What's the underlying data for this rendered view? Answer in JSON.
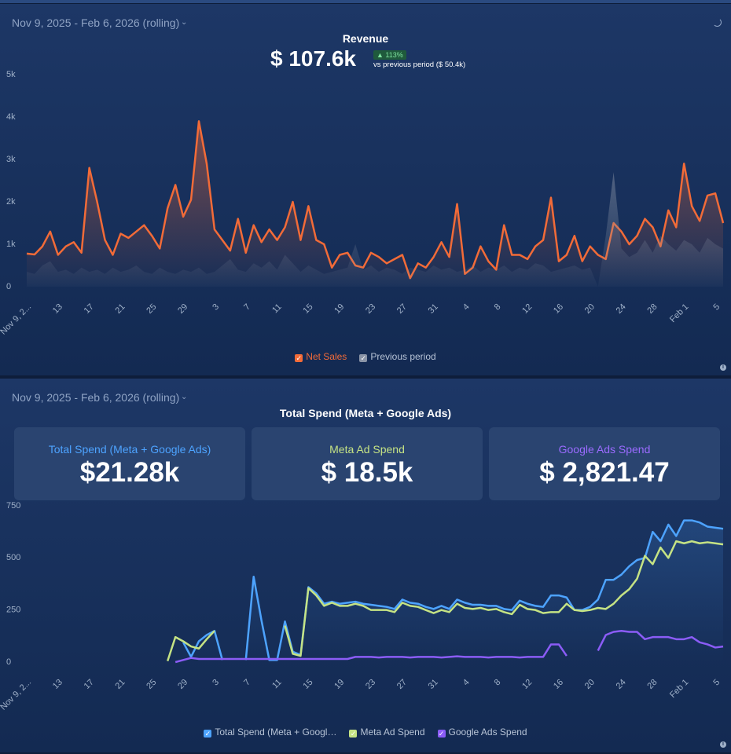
{
  "chart_data": [
    {
      "type": "line",
      "date_range": "Nov 9, 2025 - Feb 6, 2026 (rolling)",
      "title": "Revenue",
      "kpi_value": "$ 107.6k",
      "change": "▲ 113%",
      "comparison": "vs previous period ($ 50.4k)",
      "categories": [
        "Nov 9, 2...",
        null,
        null,
        null,
        "13",
        null,
        null,
        null,
        "17",
        null,
        null,
        null,
        "21",
        null,
        null,
        null,
        "25",
        null,
        null,
        null,
        "29",
        null,
        null,
        null,
        "3",
        null,
        null,
        null,
        "7",
        null,
        null,
        null,
        "11",
        null,
        null,
        null,
        "15",
        null,
        null,
        null,
        "19",
        null,
        null,
        null,
        "23",
        null,
        null,
        null,
        "27",
        null,
        null,
        null,
        "31",
        null,
        null,
        null,
        "4",
        null,
        null,
        null,
        "8",
        null,
        null,
        null,
        "12",
        null,
        null,
        null,
        "16",
        null,
        null,
        null,
        "20",
        null,
        null,
        null,
        "24",
        null,
        null,
        null,
        "28",
        null,
        null,
        null,
        "Feb 1",
        null,
        null,
        null,
        "5",
        null
      ],
      "series": [
        {
          "name": "Net Sales",
          "color": "#f26b38",
          "values": [
            780,
            760,
            950,
            1300,
            750,
            950,
            1050,
            800,
            2800,
            2000,
            1100,
            750,
            1250,
            1150,
            1300,
            1450,
            1200,
            900,
            1850,
            2400,
            1650,
            2050,
            3900,
            2900,
            1350,
            1100,
            850,
            1600,
            800,
            1450,
            1050,
            1350,
            1100,
            1400,
            2000,
            1100,
            1900,
            1100,
            1000,
            450,
            750,
            800,
            500,
            450,
            800,
            700,
            550,
            650,
            750,
            200,
            550,
            450,
            700,
            1050,
            700,
            1950,
            300,
            450,
            950,
            600,
            400,
            1450,
            750,
            750,
            650,
            950,
            1100,
            2100,
            600,
            750,
            1200,
            600,
            950,
            750,
            650,
            1500,
            1300,
            1000,
            1200,
            1600,
            1400,
            950,
            1800,
            1400,
            2900,
            1900,
            1550,
            2150,
            2200,
            1500
          ]
        },
        {
          "name": "Previous period",
          "color": "#8a94a6",
          "values": [
            350,
            300,
            500,
            600,
            350,
            400,
            300,
            450,
            350,
            400,
            300,
            450,
            350,
            400,
            500,
            350,
            300,
            450,
            350,
            300,
            400,
            350,
            450,
            300,
            350,
            500,
            650,
            400,
            350,
            550,
            450,
            600,
            400,
            750,
            550,
            350,
            500,
            400,
            300,
            350,
            400,
            450,
            1000,
            400,
            500,
            350,
            450,
            400,
            300,
            450,
            400,
            350,
            500,
            400,
            450,
            350,
            400,
            500,
            350,
            450,
            400,
            500,
            350,
            450,
            400,
            550,
            500,
            350,
            400,
            450,
            500,
            400,
            450,
            0,
            1200,
            2700,
            900,
            700,
            800,
            1100,
            800,
            1200,
            1000,
            850,
            1100,
            1000,
            800,
            1150,
            1000,
            900
          ]
        }
      ],
      "ylim": [
        0,
        5000
      ],
      "yticks": [
        {
          "value": 0,
          "label": "0"
        },
        {
          "value": 1000,
          "label": "1k"
        },
        {
          "value": 2000,
          "label": "2k"
        },
        {
          "value": 3000,
          "label": "3k"
        },
        {
          "value": 4000,
          "label": "4k"
        },
        {
          "value": 5000,
          "label": "5k"
        }
      ],
      "grid": false
    },
    {
      "type": "line",
      "date_range": "Nov 9, 2025 - Feb 6, 2026 (rolling)",
      "title": "Total Spend (Meta + Google Ads)",
      "cards": [
        {
          "label": "Total Spend (Meta + Google Ads)",
          "value": "$21.28k"
        },
        {
          "label": "Meta Ad Spend",
          "value": "$ 18.5k"
        },
        {
          "label": "Google Ads Spend",
          "value": "$ 2,821.47"
        }
      ],
      "categories": [
        "Nov 9, 2...",
        null,
        null,
        null,
        "13",
        null,
        null,
        null,
        "17",
        null,
        null,
        null,
        "21",
        null,
        null,
        null,
        "25",
        null,
        null,
        null,
        "29",
        null,
        null,
        null,
        "3",
        null,
        null,
        null,
        "7",
        null,
        null,
        null,
        "11",
        null,
        null,
        null,
        "15",
        null,
        null,
        null,
        "19",
        null,
        null,
        null,
        "23",
        null,
        null,
        null,
        "27",
        null,
        null,
        null,
        "31",
        null,
        null,
        null,
        "4",
        null,
        null,
        null,
        "8",
        null,
        null,
        null,
        "12",
        null,
        null,
        null,
        "16",
        null,
        null,
        null,
        "20",
        null,
        null,
        null,
        "24",
        null,
        null,
        null,
        "28",
        null,
        null,
        null,
        "Feb 1",
        null,
        null,
        null,
        "5",
        null
      ],
      "series": [
        {
          "name": "Total Spend (Meta + Googl…",
          "color": "#4da3ff",
          "values": [
            null,
            null,
            null,
            null,
            null,
            null,
            null,
            null,
            null,
            null,
            null,
            null,
            null,
            null,
            null,
            null,
            null,
            null,
            null,
            null,
            95,
            25,
            100,
            130,
            150,
            10,
            null,
            null,
            10,
            410,
            200,
            10,
            10,
            195,
            50,
            35,
            360,
            330,
            280,
            290,
            280,
            285,
            290,
            280,
            275,
            270,
            265,
            255,
            300,
            285,
            280,
            265,
            255,
            270,
            255,
            300,
            285,
            275,
            275,
            270,
            270,
            255,
            250,
            295,
            280,
            270,
            265,
            320,
            320,
            310,
            250,
            250,
            265,
            300,
            395,
            395,
            420,
            460,
            490,
            500,
            625,
            580,
            660,
            605,
            680,
            680,
            670,
            650,
            645,
            640
          ]
        },
        {
          "name": "Meta Ad Spend",
          "color": "#c5e384",
          "values": [
            null,
            null,
            null,
            null,
            null,
            null,
            null,
            null,
            null,
            null,
            null,
            null,
            null,
            null,
            null,
            null,
            null,
            null,
            5,
            120,
            100,
            75,
            65,
            110,
            150,
            null,
            null,
            null,
            null,
            405,
            null,
            null,
            null,
            175,
            40,
            30,
            355,
            320,
            270,
            285,
            270,
            270,
            280,
            270,
            250,
            250,
            250,
            240,
            285,
            270,
            265,
            250,
            235,
            250,
            240,
            280,
            260,
            255,
            260,
            250,
            255,
            240,
            230,
            275,
            255,
            250,
            235,
            240,
            240,
            280,
            250,
            245,
            250,
            260,
            255,
            280,
            320,
            350,
            400,
            510,
            470,
            550,
            500,
            580,
            570,
            580,
            570,
            575,
            570,
            565
          ]
        },
        {
          "name": "Google Ads Spend",
          "color": "#8b5cf6",
          "values": [
            null,
            null,
            null,
            null,
            null,
            null,
            null,
            null,
            null,
            null,
            null,
            null,
            null,
            null,
            null,
            null,
            null,
            null,
            null,
            0,
            10,
            20,
            15,
            15,
            15,
            15,
            15,
            15,
            15,
            15,
            15,
            15,
            15,
            15,
            15,
            15,
            15,
            15,
            15,
            15,
            15,
            15,
            25,
            25,
            25,
            22,
            25,
            25,
            25,
            22,
            25,
            25,
            25,
            22,
            25,
            28,
            25,
            25,
            25,
            22,
            25,
            25,
            25,
            22,
            25,
            25,
            25,
            85,
            85,
            30,
            null,
            null,
            null,
            55,
            130,
            145,
            150,
            145,
            145,
            110,
            120,
            120,
            120,
            110,
            110,
            120,
            95,
            85,
            70,
            75
          ]
        }
      ],
      "ylim": [
        0,
        750
      ],
      "yticks": [
        0,
        250,
        500,
        750
      ],
      "grid": false
    }
  ]
}
